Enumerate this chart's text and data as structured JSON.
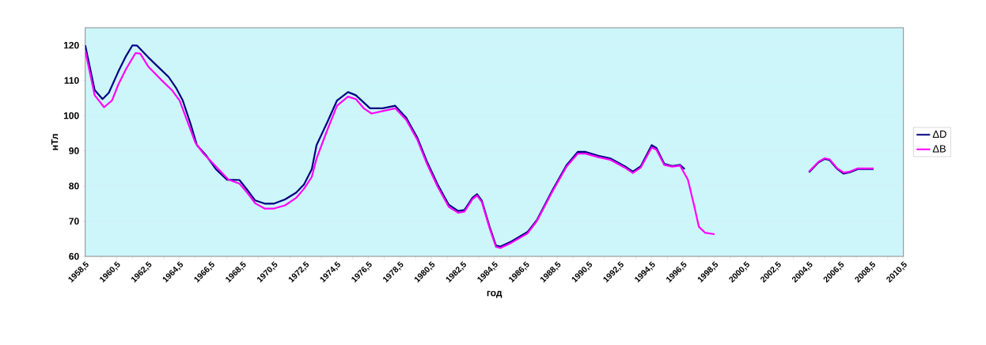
{
  "chart_data": {
    "type": "line",
    "xlabel": "год",
    "ylabel": "нТл",
    "xlim": [
      1958.5,
      2010.5
    ],
    "ylim": [
      60,
      125
    ],
    "xticks": [
      {
        "value": 1958.5,
        "label": "1958,5"
      },
      {
        "value": 1959.5,
        "label": null
      },
      {
        "value": 1960.5,
        "label": "1960,5"
      },
      {
        "value": 1961.5,
        "label": null
      },
      {
        "value": 1962.5,
        "label": "1962,5"
      },
      {
        "value": 1963.5,
        "label": null
      },
      {
        "value": 1964.5,
        "label": "1964,5"
      },
      {
        "value": 1965.5,
        "label": null
      },
      {
        "value": 1966.5,
        "label": "1966,5"
      },
      {
        "value": 1967.5,
        "label": null
      },
      {
        "value": 1968.5,
        "label": "1968,5"
      },
      {
        "value": 1969.5,
        "label": null
      },
      {
        "value": 1970.5,
        "label": "1970,5"
      },
      {
        "value": 1971.5,
        "label": null
      },
      {
        "value": 1972.5,
        "label": "1972,5"
      },
      {
        "value": 1973.5,
        "label": null
      },
      {
        "value": 1974.5,
        "label": "1974,5"
      },
      {
        "value": 1975.5,
        "label": null
      },
      {
        "value": 1976.5,
        "label": "1976,5"
      },
      {
        "value": 1977.5,
        "label": null
      },
      {
        "value": 1978.5,
        "label": "1978,5"
      },
      {
        "value": 1979.5,
        "label": null
      },
      {
        "value": 1980.5,
        "label": "1980,5"
      },
      {
        "value": 1981.5,
        "label": null
      },
      {
        "value": 1982.5,
        "label": "1982,5"
      },
      {
        "value": 1983.5,
        "label": null
      },
      {
        "value": 1984.5,
        "label": "1984,5"
      },
      {
        "value": 1985.5,
        "label": null
      },
      {
        "value": 1986.5,
        "label": "1986,5"
      },
      {
        "value": 1987.5,
        "label": null
      },
      {
        "value": 1988.5,
        "label": "1988,5"
      },
      {
        "value": 1989.5,
        "label": null
      },
      {
        "value": 1990.5,
        "label": "1990,5"
      },
      {
        "value": 1991.5,
        "label": null
      },
      {
        "value": 1992.5,
        "label": "1992,5"
      },
      {
        "value": 1993.5,
        "label": null
      },
      {
        "value": 1994.5,
        "label": "1994,5"
      },
      {
        "value": 1995.5,
        "label": null
      },
      {
        "value": 1996.5,
        "label": "1996,5"
      },
      {
        "value": 1997.5,
        "label": null
      },
      {
        "value": 1998.5,
        "label": "1998,5"
      },
      {
        "value": 1999.5,
        "label": null
      },
      {
        "value": 2000.5,
        "label": "2000,5"
      },
      {
        "value": 2001.5,
        "label": null
      },
      {
        "value": 2002.5,
        "label": "2002,5"
      },
      {
        "value": 2003.5,
        "label": null
      },
      {
        "value": 2004.5,
        "label": "2004,5"
      },
      {
        "value": 2005.5,
        "label": null
      },
      {
        "value": 2006.5,
        "label": "2006,5"
      },
      {
        "value": 2007.5,
        "label": null
      },
      {
        "value": 2008.5,
        "label": "2008,5"
      },
      {
        "value": 2009.5,
        "label": null
      },
      {
        "value": 2010.5,
        "label": "2010,5"
      }
    ],
    "yticks": [
      60,
      70,
      80,
      90,
      100,
      110,
      120
    ],
    "grid": "y",
    "legend": "right",
    "marker": "none",
    "line_style": "solid",
    "series": [
      {
        "name": "ΔD",
        "color": "#000080",
        "x": [
          1958.5,
          1959.1,
          1959.6,
          1960.0,
          1960.6,
          1961.1,
          1961.5,
          1961.8,
          1962.5,
          1963.1,
          1963.8,
          1964.3,
          1964.7,
          1965.2,
          1965.6,
          1966.2,
          1966.8,
          1967.5,
          1968.3,
          1968.8,
          1969.3,
          1969.9,
          1970.5,
          1971.2,
          1971.9,
          1972.4,
          1972.9,
          1973.2,
          1973.9,
          1974.5,
          1975.2,
          1975.7,
          1976.6,
          1977.4,
          1978.2,
          1978.9,
          1979.6,
          1980.2,
          1980.9,
          1981.6,
          1982.2,
          1982.6,
          1983.1,
          1983.4,
          1983.7,
          1984.2,
          1984.6,
          1984.9,
          1985.6,
          1986.6,
          1987.2,
          1988.2,
          1989.1,
          1989.8,
          1990.3,
          1991.1,
          1991.9,
          1992.8,
          1993.3,
          1993.8,
          1994.5,
          1994.8,
          1995.3,
          1995.8,
          1996.3,
          1996.6,
          2000.5,
          2004.5,
          2005.1,
          2005.5,
          2005.8,
          2006.3,
          2006.7,
          2007.1,
          2007.6,
          2008.6
        ],
        "values": [
          120.0,
          107.3,
          104.7,
          106.5,
          112.5,
          117.0,
          120.0,
          119.9,
          116.6,
          114.0,
          111.0,
          107.7,
          104.3,
          97.6,
          91.6,
          88.6,
          84.8,
          81.8,
          81.7,
          78.9,
          75.9,
          75.0,
          75.0,
          76.2,
          78.1,
          80.4,
          84.8,
          91.6,
          98.3,
          104.3,
          106.7,
          105.8,
          102.1,
          102.1,
          102.8,
          99.4,
          93.8,
          87.1,
          80.4,
          74.7,
          72.9,
          73.2,
          76.6,
          77.7,
          75.9,
          68.4,
          63.1,
          62.8,
          64.3,
          66.9,
          70.3,
          78.9,
          86.0,
          89.7,
          89.7,
          88.6,
          87.8,
          85.6,
          84.1,
          85.6,
          91.6,
          90.8,
          86.3,
          85.7,
          86.0,
          84.8,
          null,
          83.9,
          86.7,
          87.7,
          87.4,
          84.8,
          83.5,
          83.9,
          84.8,
          84.8
        ]
      },
      {
        "name": "ΔB",
        "color": "#ff00ff",
        "x": [
          1958.5,
          1959.1,
          1959.7,
          1960.2,
          1960.6,
          1961.1,
          1961.7,
          1962.0,
          1962.5,
          1963.3,
          1964.0,
          1964.5,
          1965.0,
          1965.5,
          1966.0,
          1966.8,
          1967.6,
          1968.3,
          1968.8,
          1969.3,
          1969.9,
          1970.5,
          1971.2,
          1971.9,
          1972.4,
          1972.9,
          1973.2,
          1973.9,
          1974.5,
          1975.2,
          1975.7,
          1976.2,
          1976.7,
          1977.4,
          1978.2,
          1978.9,
          1979.6,
          1980.2,
          1980.9,
          1981.6,
          1982.2,
          1982.6,
          1983.1,
          1983.4,
          1983.7,
          1984.2,
          1984.6,
          1984.9,
          1985.6,
          1986.6,
          1987.2,
          1988.2,
          1989.1,
          1989.8,
          1990.3,
          1991.1,
          1991.9,
          1992.8,
          1993.3,
          1993.8,
          1994.5,
          1994.8,
          1995.3,
          1995.8,
          1996.3,
          1996.8,
          1997.2,
          1997.5,
          1997.9,
          1998.5,
          2000.5,
          2004.5,
          2005.1,
          2005.5,
          2005.8,
          2006.3,
          2006.7,
          2007.1,
          2007.6,
          2008.6
        ],
        "values": [
          118.5,
          105.8,
          102.4,
          104.3,
          108.8,
          113.3,
          117.8,
          117.6,
          114.0,
          110.3,
          107.3,
          104.3,
          98.3,
          92.3,
          89.3,
          85.6,
          81.8,
          80.7,
          78.1,
          75.1,
          73.6,
          73.6,
          74.5,
          76.6,
          79.2,
          82.6,
          87.8,
          96.1,
          102.8,
          105.4,
          104.7,
          102.1,
          100.6,
          101.3,
          102.1,
          98.8,
          93.2,
          86.5,
          79.8,
          74.1,
          72.4,
          72.7,
          76.2,
          77.3,
          75.5,
          68.0,
          62.7,
          62.4,
          63.9,
          66.5,
          70.0,
          78.5,
          85.6,
          89.2,
          89.2,
          88.2,
          87.4,
          85.2,
          83.7,
          85.2,
          91.0,
          90.3,
          86.0,
          85.5,
          85.8,
          81.8,
          74.4,
          68.4,
          66.7,
          66.3,
          null,
          84.1,
          86.9,
          87.9,
          87.6,
          85.0,
          83.8,
          84.1,
          85.0,
          85.0
        ]
      }
    ]
  }
}
